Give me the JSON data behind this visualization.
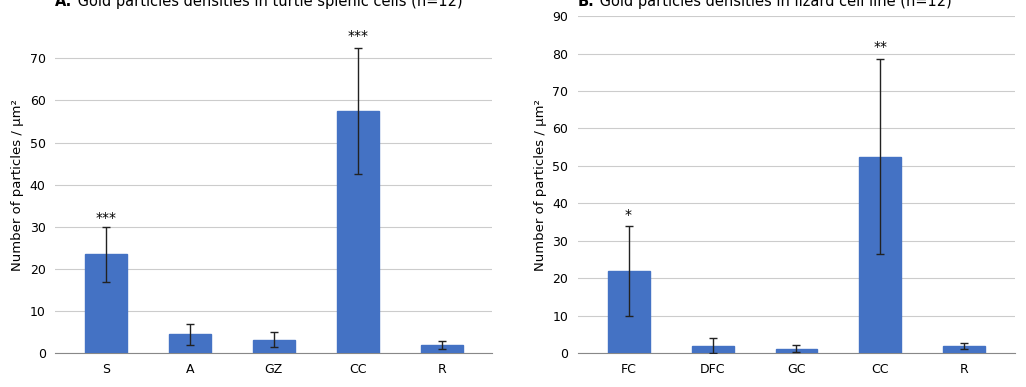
{
  "panel_A": {
    "title_bold": "A.",
    "title_rest": " Gold particles densities in turtle splenic cells (n=12)",
    "categories": [
      "S",
      "A",
      "GZ",
      "CC",
      "R"
    ],
    "values": [
      23.5,
      4.5,
      3.2,
      57.5,
      2.0
    ],
    "errors": [
      6.5,
      2.5,
      1.8,
      15.0,
      1.0
    ],
    "significance": [
      "***",
      "",
      "",
      "***",
      ""
    ],
    "sig_positions": [
      30.5,
      0,
      0,
      73.5,
      0
    ],
    "ylim": [
      0,
      80
    ],
    "yticks": [
      0,
      10,
      20,
      30,
      40,
      50,
      60,
      70
    ],
    "ylabel": "Number of particles / μm²"
  },
  "panel_B": {
    "title_bold": "B.",
    "title_rest": " Gold particles densities in lizard cell line (n=12)",
    "categories": [
      "FC",
      "DFC",
      "GC",
      "CC",
      "R"
    ],
    "values": [
      22.0,
      2.0,
      1.2,
      52.5,
      2.0
    ],
    "errors": [
      12.0,
      2.0,
      1.0,
      26.0,
      0.8
    ],
    "significance": [
      "*",
      "",
      "",
      "**",
      ""
    ],
    "sig_positions": [
      35.0,
      0,
      0,
      80.0,
      0
    ],
    "ylim": [
      0,
      90
    ],
    "yticks": [
      0,
      10,
      20,
      30,
      40,
      50,
      60,
      70,
      80,
      90
    ],
    "ylabel": "Number of particles / μm²"
  },
  "bar_color": "#4472C4",
  "error_color": "#222222",
  "bg_color": "#ffffff",
  "plot_bg_color": "#ffffff",
  "grid_color": "#cccccc",
  "title_fontsize": 10.5,
  "label_fontsize": 9.5,
  "tick_fontsize": 9,
  "sig_fontsize": 10
}
